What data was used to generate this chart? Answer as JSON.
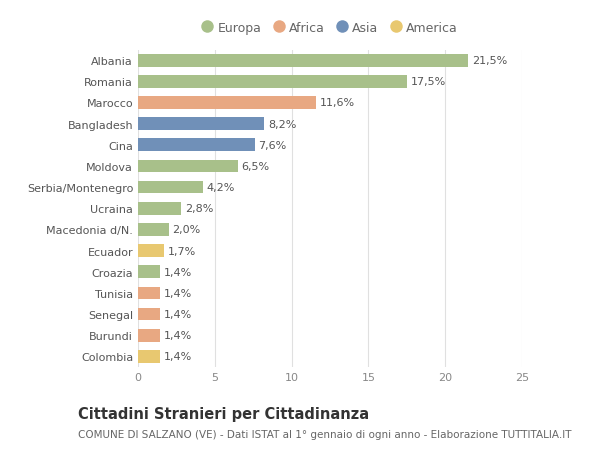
{
  "categories": [
    "Albania",
    "Romania",
    "Marocco",
    "Bangladesh",
    "Cina",
    "Moldova",
    "Serbia/Montenegro",
    "Ucraina",
    "Macedonia d/N.",
    "Ecuador",
    "Croazia",
    "Tunisia",
    "Senegal",
    "Burundi",
    "Colombia"
  ],
  "values": [
    21.5,
    17.5,
    11.6,
    8.2,
    7.6,
    6.5,
    4.2,
    2.8,
    2.0,
    1.7,
    1.4,
    1.4,
    1.4,
    1.4,
    1.4
  ],
  "labels": [
    "21,5%",
    "17,5%",
    "11,6%",
    "8,2%",
    "7,6%",
    "6,5%",
    "4,2%",
    "2,8%",
    "2,0%",
    "1,7%",
    "1,4%",
    "1,4%",
    "1,4%",
    "1,4%",
    "1,4%"
  ],
  "continents": [
    "Europa",
    "Europa",
    "Africa",
    "Asia",
    "Asia",
    "Europa",
    "Europa",
    "Europa",
    "Europa",
    "America",
    "Europa",
    "Africa",
    "Africa",
    "Africa",
    "America"
  ],
  "continent_colors": {
    "Europa": "#a8c08a",
    "Africa": "#e8a882",
    "Asia": "#7090b8",
    "America": "#e8c870"
  },
  "legend_order": [
    "Europa",
    "Africa",
    "Asia",
    "America"
  ],
  "xlim": [
    0,
    25
  ],
  "xticks": [
    0,
    5,
    10,
    15,
    20,
    25
  ],
  "title": "Cittadini Stranieri per Cittadinanza",
  "subtitle": "COMUNE DI SALZANO (VE) - Dati ISTAT al 1° gennaio di ogni anno - Elaborazione TUTTITALIA.IT",
  "background_color": "#ffffff",
  "bar_height": 0.6,
  "grid_color": "#e0e0e0",
  "label_fontsize": 8.0,
  "tick_fontsize": 8.0,
  "title_fontsize": 10.5,
  "subtitle_fontsize": 7.5
}
